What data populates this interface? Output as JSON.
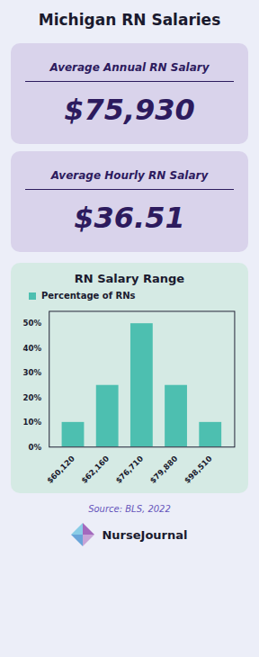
{
  "chart_data": {
    "type": "bar",
    "title": "RN Salary Range",
    "annotations": [
      "Michigan RN Salaries",
      "Average Annual RN Salary",
      "$75,930",
      "Average Hourly RN Salary",
      "$36.51",
      "Source: BLS, 2022",
      "NurseJournal"
    ],
    "categories": [
      "$60,120",
      "$62,160",
      "$76,710",
      "$79,880",
      "$98,510"
    ],
    "series": [
      {
        "name": "Percentage of RNs",
        "color": "#4dbfb0",
        "values": [
          10,
          25,
          50,
          25,
          10
        ]
      }
    ],
    "ylim": [
      0,
      55
    ],
    "yticks": [
      {
        "value": 0,
        "label": "0%"
      },
      {
        "value": 10,
        "label": "10%"
      },
      {
        "value": 20,
        "label": "20%"
      },
      {
        "value": 30,
        "label": "30%"
      },
      {
        "value": 40,
        "label": "40%"
      },
      {
        "value": 50,
        "label": "50%"
      }
    ],
    "grid": false,
    "legend": "upper left"
  }
}
